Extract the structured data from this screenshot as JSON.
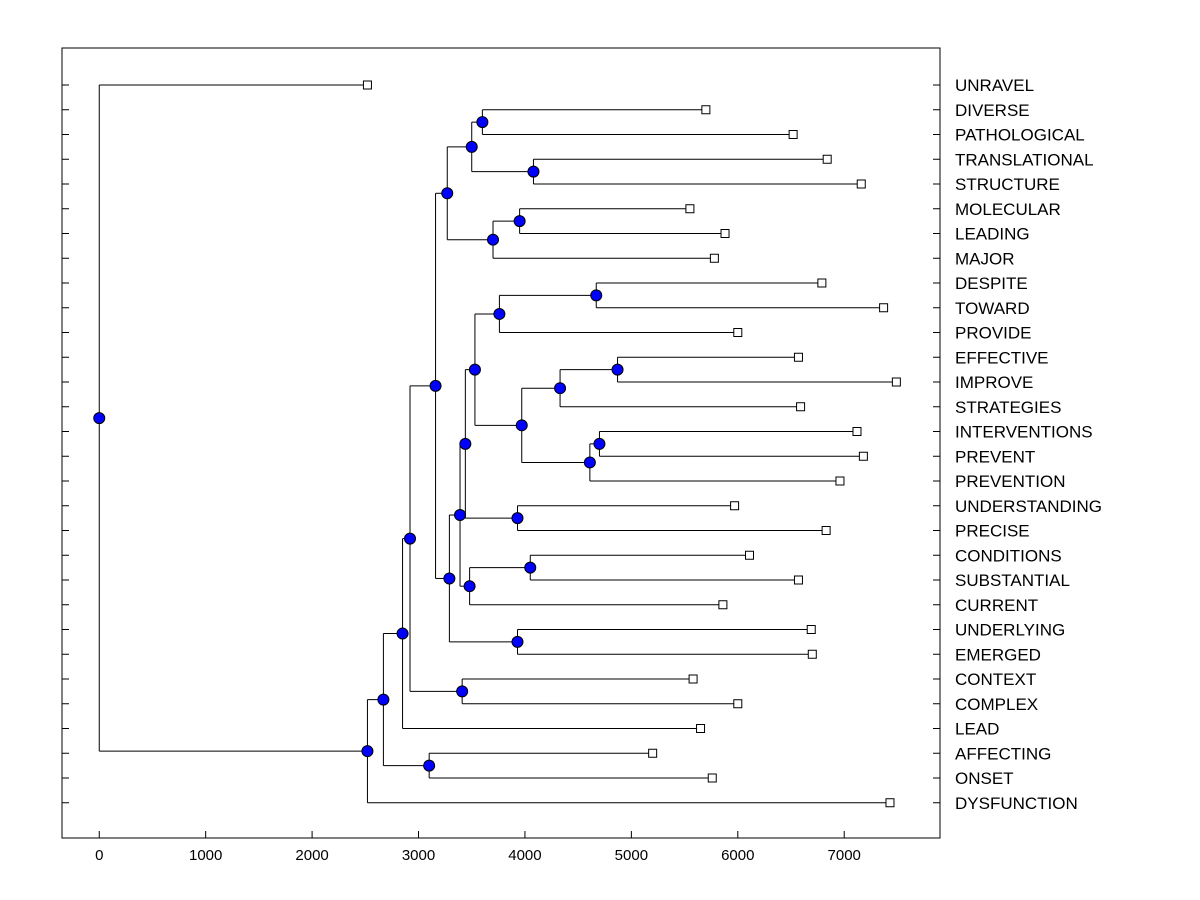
{
  "chart_data": {
    "type": "dendrogram",
    "title": "",
    "xlabel": "",
    "ylabel": "",
    "xlim": [
      -350,
      7900
    ],
    "xticks": [
      0,
      1000,
      2000,
      3000,
      4000,
      5000,
      6000,
      7000
    ],
    "grid": false,
    "leaves": [
      {
        "label": "UNRAVEL",
        "value": 2520
      },
      {
        "label": "DIVERSE",
        "value": 5700
      },
      {
        "label": "PATHOLOGICAL",
        "value": 6520
      },
      {
        "label": "TRANSLATIONAL",
        "value": 6840
      },
      {
        "label": "STRUCTURE",
        "value": 7160
      },
      {
        "label": "MOLECULAR",
        "value": 5550
      },
      {
        "label": "LEADING",
        "value": 5880
      },
      {
        "label": "MAJOR",
        "value": 5780
      },
      {
        "label": "DESPITE",
        "value": 6790
      },
      {
        "label": "TOWARD",
        "value": 7370
      },
      {
        "label": "PROVIDE",
        "value": 6000
      },
      {
        "label": "EFFECTIVE",
        "value": 6570
      },
      {
        "label": "IMPROVE",
        "value": 7490
      },
      {
        "label": "STRATEGIES",
        "value": 6590
      },
      {
        "label": "INTERVENTIONS",
        "value": 7120
      },
      {
        "label": "PREVENT",
        "value": 7180
      },
      {
        "label": "PREVENTION",
        "value": 6960
      },
      {
        "label": "UNDERSTANDING",
        "value": 5970
      },
      {
        "label": "PRECISE",
        "value": 6830
      },
      {
        "label": "CONDITIONS",
        "value": 6110
      },
      {
        "label": "SUBSTANTIAL",
        "value": 6570
      },
      {
        "label": "CURRENT",
        "value": 5860
      },
      {
        "label": "UNDERLYING",
        "value": 6690
      },
      {
        "label": "EMERGED",
        "value": 6700
      },
      {
        "label": "CONTEXT",
        "value": 5580
      },
      {
        "label": "COMPLEX",
        "value": 6000
      },
      {
        "label": "LEAD",
        "value": 5650
      },
      {
        "label": "AFFECTING",
        "value": 5200
      },
      {
        "label": "ONSET",
        "value": 5760
      },
      {
        "label": "DYSFUNCTION",
        "value": 7430
      }
    ],
    "merges": [
      {
        "id": "n1",
        "height": 3600,
        "children": [
          "DIVERSE",
          "PATHOLOGICAL"
        ]
      },
      {
        "id": "n2",
        "height": 4080,
        "children": [
          "TRANSLATIONAL",
          "STRUCTURE"
        ]
      },
      {
        "id": "n3",
        "height": 3500,
        "children": [
          "n1",
          "n2"
        ]
      },
      {
        "id": "n4",
        "height": 3950,
        "children": [
          "MOLECULAR",
          "LEADING"
        ]
      },
      {
        "id": "n5",
        "height": 3700,
        "children": [
          "n4",
          "MAJOR"
        ]
      },
      {
        "id": "n6",
        "height": 3270,
        "children": [
          "n3",
          "n5"
        ]
      },
      {
        "id": "n7",
        "height": 4670,
        "children": [
          "DESPITE",
          "TOWARD"
        ]
      },
      {
        "id": "n8",
        "height": 3760,
        "children": [
          "n7",
          "PROVIDE"
        ]
      },
      {
        "id": "n9",
        "height": 4870,
        "children": [
          "EFFECTIVE",
          "IMPROVE"
        ]
      },
      {
        "id": "n10",
        "height": 4330,
        "children": [
          "n9",
          "STRATEGIES"
        ]
      },
      {
        "id": "n11",
        "height": 4700,
        "children": [
          "INTERVENTIONS",
          "PREVENT"
        ]
      },
      {
        "id": "n12",
        "height": 4610,
        "children": [
          "n11",
          "PREVENTION"
        ]
      },
      {
        "id": "n13",
        "height": 3970,
        "children": [
          "n10",
          "n12"
        ]
      },
      {
        "id": "n14",
        "height": 3530,
        "children": [
          "n8",
          "n13"
        ]
      },
      {
        "id": "n15",
        "height": 3930,
        "children": [
          "UNDERSTANDING",
          "PRECISE"
        ]
      },
      {
        "id": "n16",
        "height": 3440,
        "children": [
          "n14",
          "n15"
        ]
      },
      {
        "id": "n17",
        "height": 4050,
        "children": [
          "CONDITIONS",
          "SUBSTANTIAL"
        ]
      },
      {
        "id": "n18",
        "height": 3480,
        "children": [
          "n17",
          "CURRENT"
        ]
      },
      {
        "id": "n19",
        "height": 3390,
        "children": [
          "n16",
          "n18"
        ]
      },
      {
        "id": "n20",
        "height": 3930,
        "children": [
          "UNDERLYING",
          "EMERGED"
        ]
      },
      {
        "id": "n21",
        "height": 3290,
        "children": [
          "n19",
          "n20"
        ]
      },
      {
        "id": "n22",
        "height": 3160,
        "children": [
          "n6",
          "n21"
        ]
      },
      {
        "id": "n23",
        "height": 3410,
        "children": [
          "CONTEXT",
          "COMPLEX"
        ]
      },
      {
        "id": "n24",
        "height": 2920,
        "children": [
          "n22",
          "n23"
        ]
      },
      {
        "id": "n25",
        "height": 2850,
        "children": [
          "n24",
          "LEAD"
        ]
      },
      {
        "id": "n26",
        "height": 3100,
        "children": [
          "AFFECTING",
          "ONSET"
        ]
      },
      {
        "id": "n27",
        "height": 2670,
        "children": [
          "n25",
          "n26"
        ]
      },
      {
        "id": "n28",
        "height": 2520,
        "children": [
          "n27",
          "DYSFUNCTION"
        ]
      },
      {
        "id": "root",
        "height": 0,
        "children": [
          "UNRAVEL",
          "n28"
        ]
      }
    ],
    "colors": {
      "line": "#000000",
      "node_fill": "#0000ff",
      "node_stroke": "#000000",
      "leaf_fill": "#ffffff",
      "background": "#ffffff"
    }
  }
}
